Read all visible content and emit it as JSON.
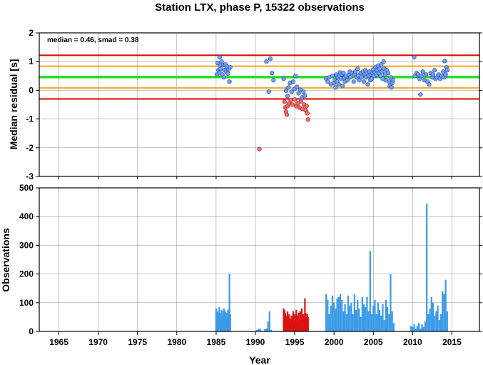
{
  "chart_data": [
    {
      "type": "scatter",
      "title": "Station LTX, phase P, 15322 observations",
      "xlabel": "",
      "ylabel": "Median residual [s]",
      "annotation": "median = 0.46, smad = 0.38",
      "xlim": [
        1962.5,
        2018.5
      ],
      "ylim": [
        -3,
        2
      ],
      "xticks": [
        1965,
        1970,
        1975,
        1980,
        1985,
        1990,
        1995,
        2000,
        2005,
        2010,
        2015
      ],
      "yticks": [
        -3,
        -2,
        -1,
        0,
        1,
        2
      ],
      "grid": true,
      "reference_lines": [
        {
          "y": 1.22,
          "color": "#dd0000",
          "role": "median + 2 smad"
        },
        {
          "y": 0.84,
          "color": "#f5a623",
          "role": "median + 1 smad"
        },
        {
          "y": 0.46,
          "color": "#22dd22",
          "role": "median"
        },
        {
          "y": 0.08,
          "color": "#f5a623",
          "role": "median - 1 smad"
        },
        {
          "y": -0.3,
          "color": "#dd0000",
          "role": "median - 2 smad"
        }
      ],
      "series": [
        {
          "color": "#6ea0ff",
          "points": [
            [
              1985.1,
              0.55
            ],
            [
              1985.2,
              0.95
            ],
            [
              1985.3,
              0.7
            ],
            [
              1985.4,
              0.62
            ],
            [
              1985.45,
              1.15
            ],
            [
              1985.5,
              0.85
            ],
            [
              1985.6,
              0.75
            ],
            [
              1985.7,
              1.0
            ],
            [
              1985.8,
              0.55
            ],
            [
              1985.9,
              0.88
            ],
            [
              1986.0,
              0.45
            ],
            [
              1986.1,
              0.7
            ],
            [
              1986.2,
              0.9
            ],
            [
              1986.3,
              0.65
            ],
            [
              1986.4,
              0.82
            ],
            [
              1986.5,
              0.58
            ],
            [
              1986.6,
              0.72
            ],
            [
              1986.7,
              0.3
            ],
            [
              1986.8,
              0.8
            ],
            [
              1991.4,
              1.0
            ],
            [
              1991.7,
              -0.05
            ],
            [
              1991.9,
              1.1
            ],
            [
              1992.1,
              0.6
            ],
            [
              1992.3,
              0.35
            ],
            [
              1993.6,
              0.4
            ],
            [
              1993.9,
              -0.02
            ],
            [
              1994.1,
              -0.2
            ],
            [
              1994.2,
              0.1
            ],
            [
              1994.4,
              0.25
            ],
            [
              1994.6,
              -0.05
            ],
            [
              1994.8,
              0.3
            ],
            [
              1995.0,
              0.05
            ],
            [
              1995.1,
              0.5
            ],
            [
              1995.3,
              0.12
            ],
            [
              1995.5,
              -0.1
            ],
            [
              1995.7,
              0.02
            ],
            [
              1995.9,
              -0.25
            ],
            [
              1996.1,
              -0.05
            ],
            [
              1996.3,
              -0.18
            ],
            [
              1999.0,
              0.4
            ],
            [
              1999.2,
              0.3
            ],
            [
              1999.4,
              0.45
            ],
            [
              1999.6,
              0.2
            ],
            [
              1999.8,
              0.5
            ],
            [
              2000.0,
              0.25
            ],
            [
              2000.1,
              0.35
            ],
            [
              2000.2,
              0.1
            ],
            [
              2000.3,
              0.55
            ],
            [
              2000.4,
              0.3
            ],
            [
              2000.5,
              0.45
            ],
            [
              2000.6,
              0.2
            ],
            [
              2000.7,
              0.5
            ],
            [
              2000.8,
              0.62
            ],
            [
              2000.9,
              0.4
            ],
            [
              2001.0,
              0.55
            ],
            [
              2001.1,
              0.15
            ],
            [
              2001.2,
              0.6
            ],
            [
              2001.3,
              0.42
            ],
            [
              2001.4,
              0.3
            ],
            [
              2001.5,
              0.5
            ],
            [
              2001.7,
              0.35
            ],
            [
              2001.9,
              0.55
            ],
            [
              2002.0,
              0.65
            ],
            [
              2002.1,
              0.45
            ],
            [
              2002.3,
              0.6
            ],
            [
              2002.5,
              0.3
            ],
            [
              2002.6,
              0.55
            ],
            [
              2002.7,
              0.65
            ],
            [
              2002.9,
              0.45
            ],
            [
              2003.0,
              0.75
            ],
            [
              2003.1,
              0.5
            ],
            [
              2003.2,
              0.35
            ],
            [
              2003.4,
              0.6
            ],
            [
              2003.5,
              0.45
            ],
            [
              2003.7,
              0.65
            ],
            [
              2003.8,
              0.3
            ],
            [
              2003.9,
              0.55
            ],
            [
              2004.0,
              0.7
            ],
            [
              2004.1,
              0.45
            ],
            [
              2004.2,
              0.6
            ],
            [
              2004.3,
              0.2
            ],
            [
              2004.4,
              0.5
            ],
            [
              2004.5,
              0.65
            ],
            [
              2004.6,
              0.35
            ],
            [
              2004.7,
              0.55
            ],
            [
              2004.8,
              0.4
            ],
            [
              2004.9,
              0.6
            ],
            [
              2005.0,
              0.72
            ],
            [
              2005.1,
              0.5
            ],
            [
              2005.2,
              0.62
            ],
            [
              2005.3,
              0.8
            ],
            [
              2005.4,
              0.55
            ],
            [
              2005.5,
              0.7
            ],
            [
              2005.6,
              0.85
            ],
            [
              2005.7,
              0.6
            ],
            [
              2005.8,
              0.75
            ],
            [
              2005.9,
              0.5
            ],
            [
              2006.0,
              0.9
            ],
            [
              2006.1,
              0.65
            ],
            [
              2006.2,
              0.4
            ],
            [
              2006.3,
              1.0
            ],
            [
              2006.4,
              0.75
            ],
            [
              2006.5,
              0.55
            ],
            [
              2006.6,
              0.35
            ],
            [
              2006.7,
              0.7
            ],
            [
              2006.9,
              0.6
            ],
            [
              2007.0,
              0.3
            ],
            [
              2007.1,
              0.15
            ],
            [
              2007.2,
              0.45
            ],
            [
              2007.3,
              0.1
            ],
            [
              2007.4,
              0.25
            ],
            [
              2007.5,
              0.35
            ],
            [
              2010.2,
              1.15
            ],
            [
              2010.3,
              0.5
            ],
            [
              2010.5,
              0.6
            ],
            [
              2010.7,
              0.55
            ],
            [
              2010.9,
              0.4
            ],
            [
              2011.0,
              -0.15
            ],
            [
              2011.1,
              0.5
            ],
            [
              2011.3,
              0.65
            ],
            [
              2011.5,
              0.35
            ],
            [
              2011.7,
              0.55
            ],
            [
              2011.9,
              0.3
            ],
            [
              2012.1,
              0.2
            ],
            [
              2012.3,
              0.6
            ],
            [
              2012.5,
              0.45
            ],
            [
              2012.6,
              0.55
            ],
            [
              2012.8,
              0.7
            ],
            [
              2012.9,
              0.4
            ],
            [
              2013.1,
              0.45
            ],
            [
              2013.3,
              0.55
            ],
            [
              2013.5,
              0.4
            ],
            [
              2013.7,
              0.5
            ],
            [
              2013.9,
              0.65
            ],
            [
              2014.0,
              0.45
            ],
            [
              2014.1,
              1.02
            ],
            [
              2014.2,
              0.55
            ],
            [
              2014.3,
              0.8
            ],
            [
              2014.4,
              0.7
            ]
          ]
        },
        {
          "color": "#ff6a6a",
          "points": [
            [
              1990.5,
              -2.05
            ],
            [
              1993.7,
              -0.4
            ],
            [
              1993.8,
              -0.6
            ],
            [
              1993.9,
              -0.75
            ],
            [
              1994.0,
              -0.85
            ],
            [
              1994.1,
              -0.55
            ],
            [
              1994.3,
              -0.45
            ],
            [
              1994.5,
              -0.35
            ],
            [
              1994.7,
              -0.5
            ],
            [
              1995.0,
              -0.32
            ],
            [
              1995.2,
              -0.55
            ],
            [
              1995.4,
              -0.45
            ],
            [
              1995.6,
              -0.6
            ],
            [
              1995.8,
              -0.38
            ],
            [
              1996.0,
              -0.65
            ],
            [
              1996.2,
              -0.5
            ],
            [
              1996.4,
              -0.7
            ],
            [
              1996.5,
              -0.55
            ],
            [
              1996.6,
              -0.8
            ],
            [
              1996.7,
              -1.02
            ]
          ]
        }
      ]
    },
    {
      "type": "bar",
      "xlabel": "Year",
      "ylabel": "Observations",
      "xlim": [
        1962.5,
        2018.5
      ],
      "ylim": [
        0,
        500
      ],
      "xticks": [
        1965,
        1970,
        1975,
        1980,
        1985,
        1990,
        1995,
        2000,
        2005,
        2010,
        2015
      ],
      "yticks": [
        0,
        100,
        200,
        300,
        400,
        500
      ],
      "grid": true,
      "series": [
        {
          "color": "#3a9ae8",
          "x": [
            1985.0,
            1985.1,
            1985.2,
            1985.3,
            1985.4,
            1985.5,
            1985.6,
            1985.7,
            1985.8,
            1985.9,
            1986.0,
            1986.1,
            1986.2,
            1986.3,
            1986.4,
            1986.5,
            1986.6,
            1986.7,
            1986.8,
            1990.2,
            1990.4,
            1990.6,
            1990.8,
            1991.0,
            1991.2,
            1991.4,
            1991.6,
            1991.8,
            1992.0,
            1999.0,
            1999.2,
            1999.4,
            1999.6,
            1999.8,
            2000.0,
            2000.2,
            2000.4,
            2000.6,
            2000.8,
            2001.0,
            2001.2,
            2001.4,
            2001.6,
            2001.8,
            2002.0,
            2002.2,
            2002.4,
            2002.6,
            2002.8,
            2003.0,
            2003.2,
            2003.4,
            2003.6,
            2003.8,
            2004.0,
            2004.2,
            2004.4,
            2004.6,
            2004.8,
            2005.0,
            2005.2,
            2005.4,
            2005.6,
            2005.8,
            2006.0,
            2006.2,
            2006.4,
            2006.6,
            2006.8,
            2007.0,
            2007.2,
            2007.4,
            2007.6,
            2009.8,
            2010.0,
            2010.2,
            2010.4,
            2010.6,
            2010.8,
            2011.0,
            2011.2,
            2011.4,
            2011.6,
            2011.8,
            2012.0,
            2012.2,
            2012.4,
            2012.6,
            2012.8,
            2013.0,
            2013.2,
            2013.4,
            2013.6,
            2013.8,
            2014.0,
            2014.2,
            2014.4
          ],
          "values": [
            80,
            50,
            70,
            60,
            85,
            40,
            65,
            75,
            55,
            70,
            80,
            60,
            70,
            45,
            65,
            75,
            55,
            200,
            60,
            5,
            10,
            8,
            3,
            0,
            8,
            10,
            35,
            70,
            5,
            130,
            110,
            60,
            90,
            125,
            100,
            80,
            115,
            120,
            130,
            110,
            70,
            95,
            60,
            125,
            90,
            100,
            60,
            130,
            75,
            110,
            80,
            50,
            120,
            95,
            85,
            120,
            70,
            280,
            60,
            90,
            110,
            60,
            100,
            75,
            55,
            95,
            40,
            110,
            85,
            60,
            200,
            70,
            30,
            20,
            15,
            25,
            10,
            20,
            30,
            10,
            25,
            15,
            35,
            445,
            60,
            80,
            120,
            100,
            55,
            70,
            90,
            40,
            60,
            140,
            130,
            180,
            70
          ]
        },
        {
          "color": "#dd1111",
          "x": [
            1993.6,
            1993.7,
            1993.8,
            1993.9,
            1994.0,
            1994.1,
            1994.2,
            1994.3,
            1994.4,
            1994.5,
            1994.6,
            1994.7,
            1994.8,
            1994.9,
            1995.0,
            1995.1,
            1995.2,
            1995.3,
            1995.4,
            1995.5,
            1995.6,
            1995.7,
            1995.8,
            1995.9,
            1996.0,
            1996.1,
            1996.2,
            1996.3,
            1996.4,
            1996.5,
            1996.6,
            1996.7
          ],
          "values": [
            80,
            75,
            65,
            55,
            40,
            70,
            50,
            60,
            45,
            30,
            55,
            40,
            70,
            25,
            60,
            50,
            75,
            35,
            55,
            65,
            45,
            70,
            55,
            80,
            40,
            60,
            50,
            115,
            65,
            45,
            60,
            50
          ]
        }
      ]
    }
  ]
}
